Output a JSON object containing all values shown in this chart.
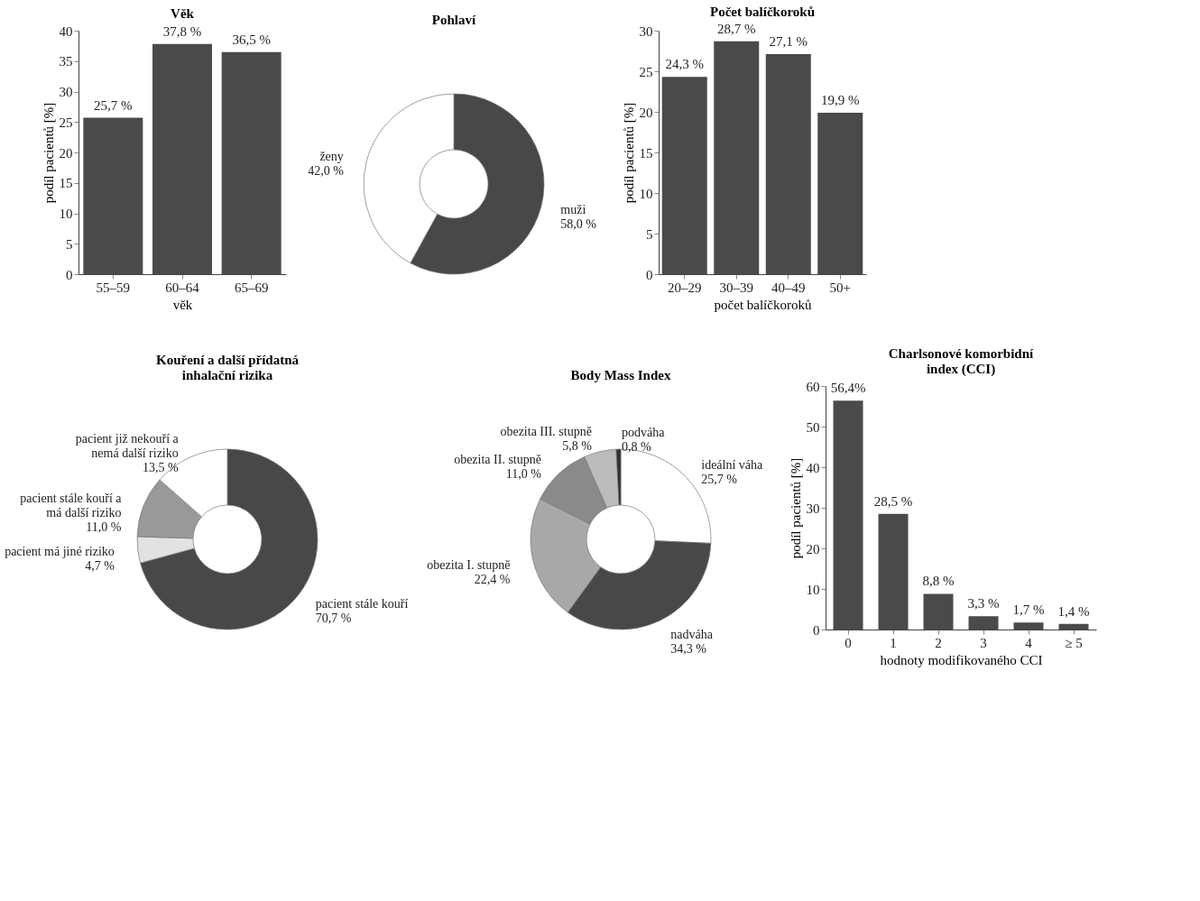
{
  "chart_data": [
    {
      "type": "bar",
      "title": "Věk",
      "xlabel": "věk",
      "ylabel": "podíl pacientů [%]",
      "categories": [
        "55–59",
        "60–64",
        "65–69"
      ],
      "values": [
        25.7,
        37.8,
        36.5
      ],
      "value_labels": [
        "25,7 %",
        "37,8 %",
        "36,5 %"
      ],
      "color": "#4a4a4a",
      "ylim": [
        0,
        40
      ],
      "yticks": [
        0,
        5,
        10,
        15,
        20,
        25,
        30,
        35,
        40
      ],
      "grid": false
    },
    {
      "type": "donut",
      "title": "Pohlaví",
      "categories": [
        "muži",
        "ženy"
      ],
      "values": [
        58.0,
        42.0
      ],
      "value_labels": [
        "58,0 %",
        "42,0 %"
      ],
      "colors": [
        "#484848",
        "#ffffff"
      ],
      "legend": false
    },
    {
      "type": "bar",
      "title": "Počet balíčkoroků",
      "xlabel": "počet balíčkoroků",
      "ylabel": "podíl pacientů [%]",
      "categories": [
        "20–29",
        "30–39",
        "40–49",
        "50+"
      ],
      "values": [
        24.3,
        28.7,
        27.1,
        19.9
      ],
      "value_labels": [
        "24,3 %",
        "28,7 %",
        "27,1 %",
        "19,9 %"
      ],
      "color": "#4a4a4a",
      "ylim": [
        0,
        30
      ],
      "yticks": [
        0,
        5,
        10,
        15,
        20,
        25,
        30
      ],
      "grid": false
    },
    {
      "type": "donut",
      "title": "Kouření a další přídatná inhalační rizika",
      "categories": [
        "pacient stále kouří",
        "pacient má jiné riziko",
        "pacient stále kouří a má další riziko",
        "pacient již nekouří a nemá další riziko"
      ],
      "values": [
        70.7,
        4.7,
        11.0,
        13.5
      ],
      "value_labels": [
        "70,7 %",
        "4,7 %",
        "11,0 %",
        "13,5 %"
      ],
      "colors": [
        "#484848",
        "#e2e2e2",
        "#999999",
        "#ffffff"
      ],
      "legend": false
    },
    {
      "type": "donut",
      "title": "Body Mass Index",
      "categories": [
        "ideální váha",
        "nadváha",
        "obezita I. stupně",
        "obezita II. stupně",
        "obezita III. stupně",
        "podváha"
      ],
      "values": [
        25.7,
        34.3,
        22.4,
        11.0,
        5.8,
        0.8
      ],
      "value_labels": [
        "25,7 %",
        "34,3 %",
        "22,4 %",
        "11,0 %",
        "5,8 %",
        "0,8 %"
      ],
      "colors": [
        "#ffffff",
        "#484848",
        "#a8a8a8",
        "#8a8a8a",
        "#bcbcbc",
        "#303030"
      ],
      "legend": false
    },
    {
      "type": "bar",
      "title": "Charlsonové komorbidní index (CCI)",
      "xlabel": "hodnoty modifikovaného CCI",
      "ylabel": "podíl pacientů [%]",
      "categories": [
        "0",
        "1",
        "2",
        "3",
        "4",
        "≥ 5"
      ],
      "values": [
        56.4,
        28.5,
        8.8,
        3.3,
        1.7,
        1.4
      ],
      "value_labels": [
        "56,4%",
        "28,5 %",
        "8,8 %",
        "3,3 %",
        "1,7 %",
        "1,4 %"
      ],
      "color": "#4a4a4a",
      "ylim": [
        0,
        60
      ],
      "yticks": [
        0,
        10,
        20,
        30,
        40,
        50,
        60
      ],
      "grid": false
    }
  ]
}
